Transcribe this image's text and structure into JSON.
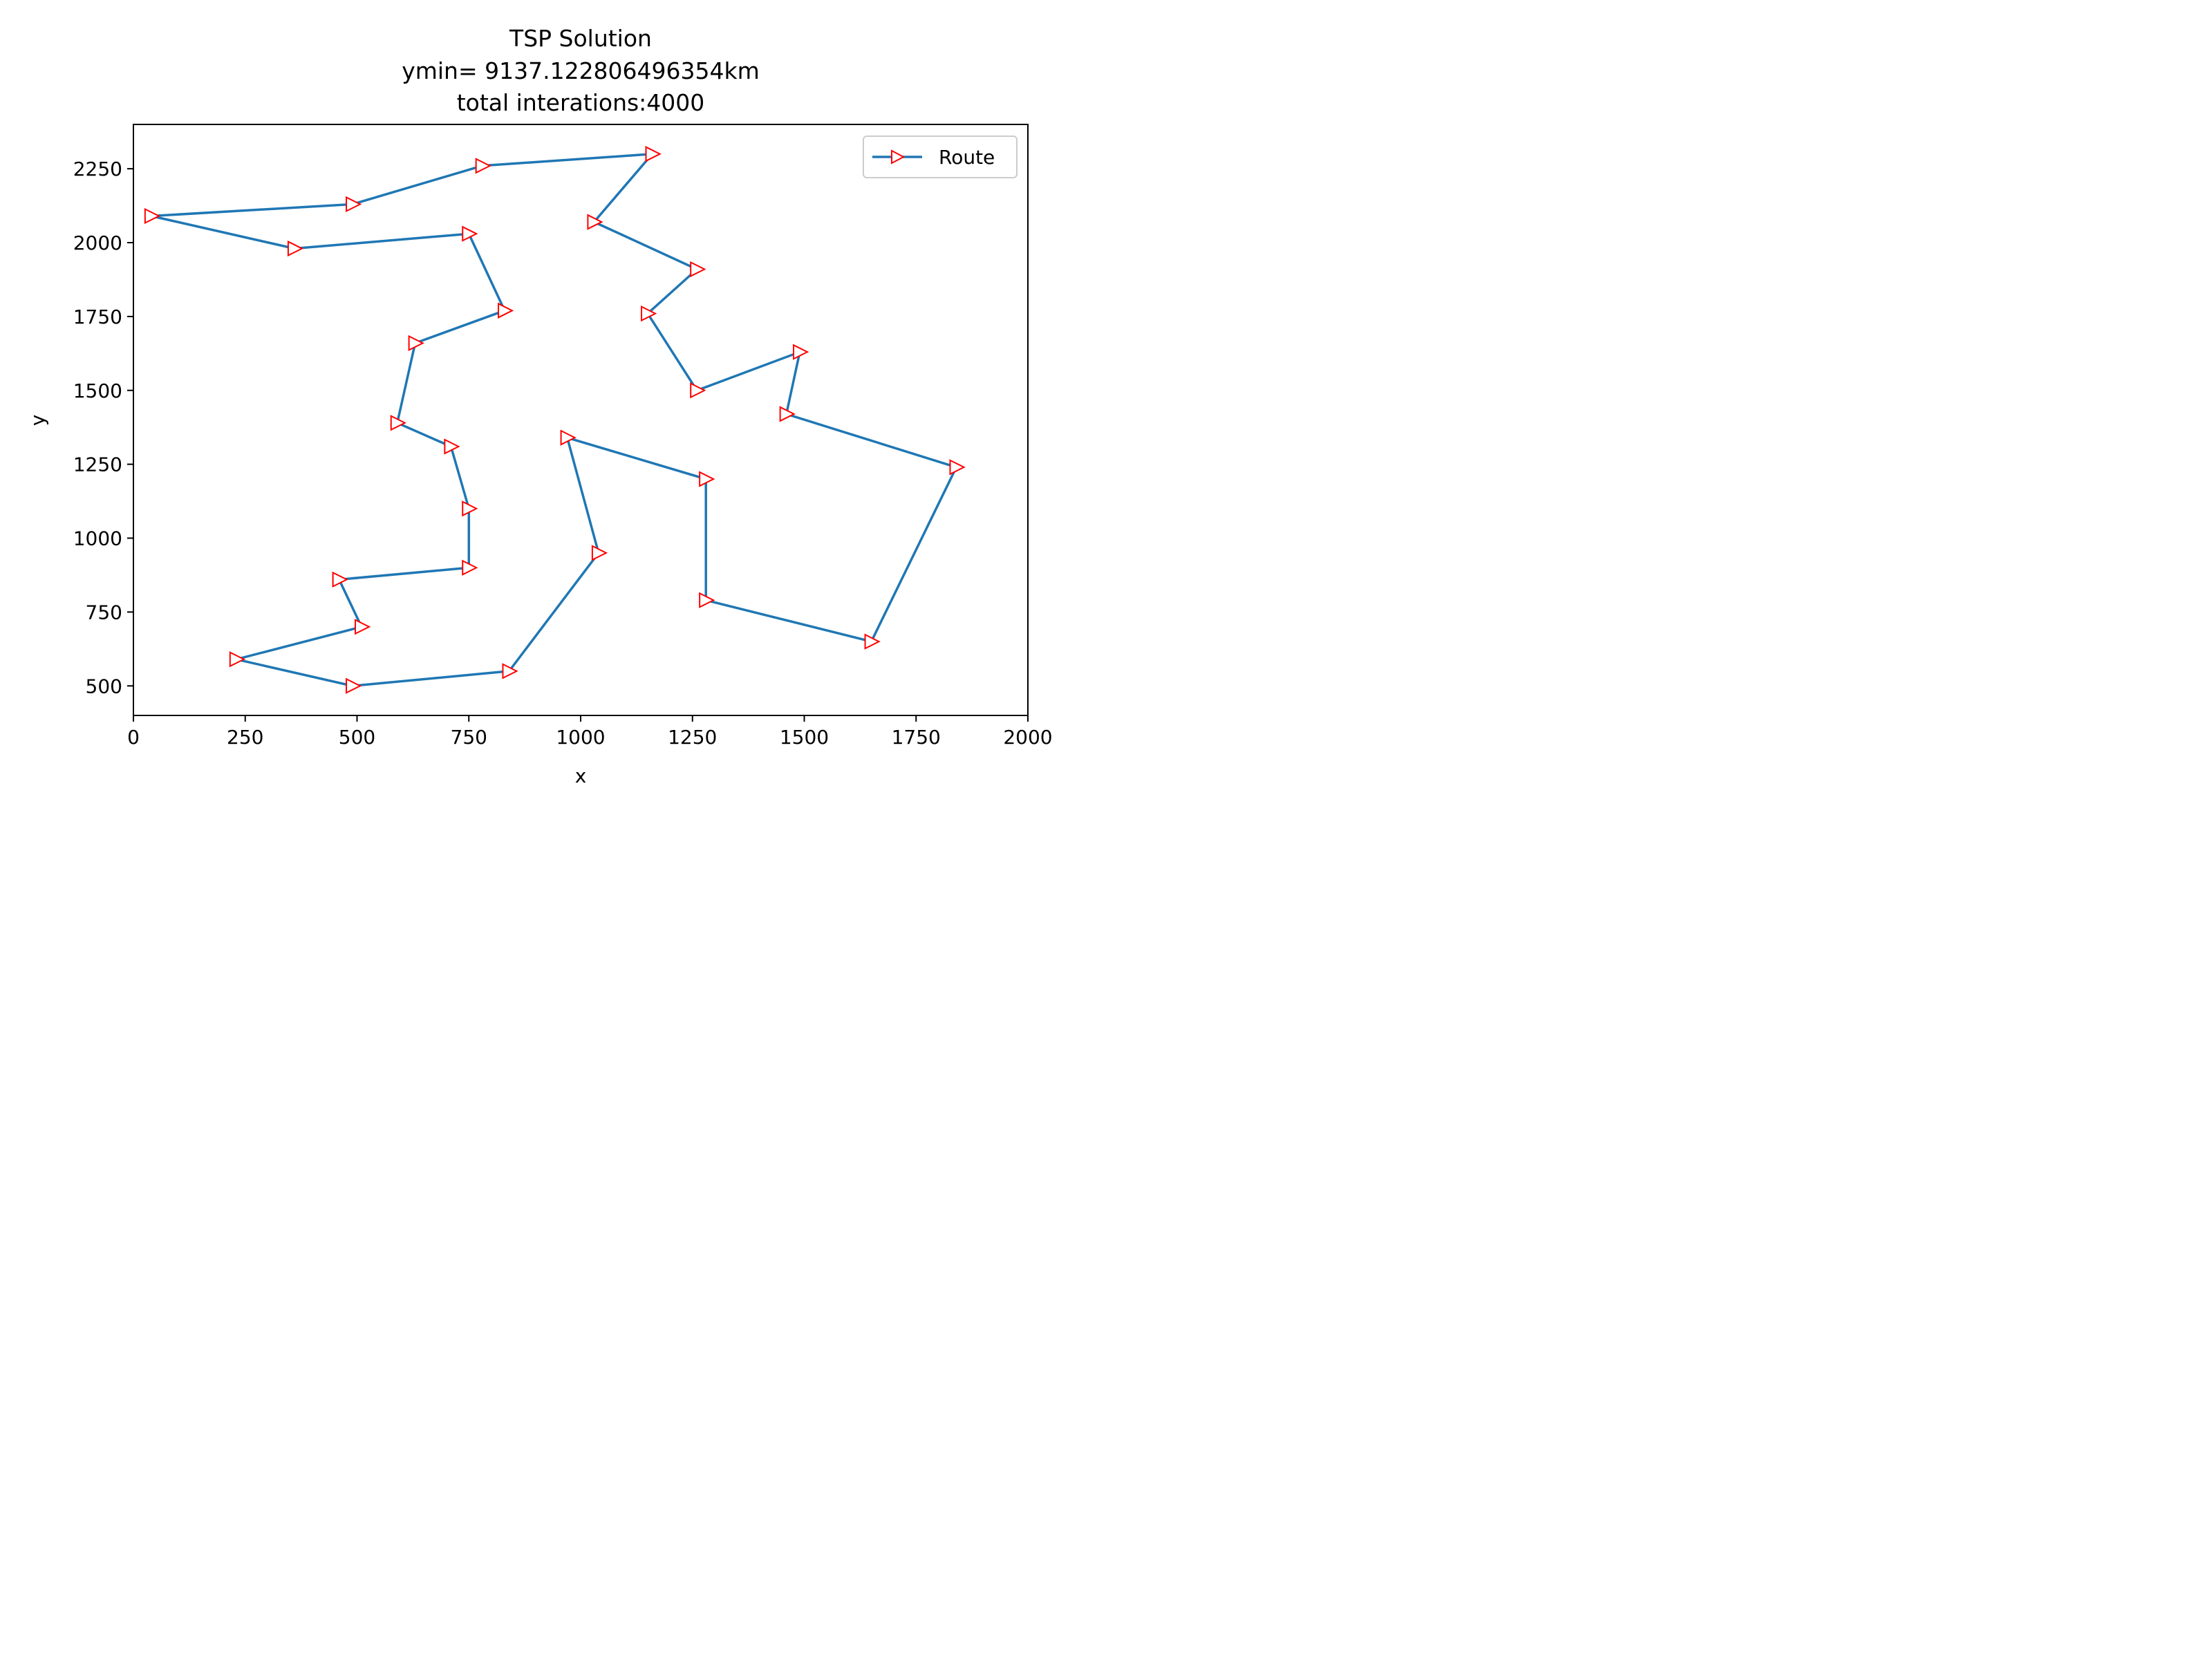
{
  "chart_data": {
    "type": "line",
    "title_lines": [
      "TSP Solution",
      "ymin= 9137.122806496354km",
      "total interations:4000"
    ],
    "xlabel": "x",
    "ylabel": "y",
    "xlim": [
      0,
      2000
    ],
    "ylim": [
      400,
      2400
    ],
    "xticks": [
      0,
      250,
      500,
      750,
      1000,
      1250,
      1500,
      1750,
      2000
    ],
    "yticks": [
      500,
      750,
      1000,
      1250,
      1500,
      1750,
      2000,
      2250
    ],
    "grid": false,
    "legend_position": "top-right",
    "series": [
      {
        "name": "Route",
        "color": "#1f77b4",
        "marker": "right-triangle",
        "marker_edge_color": "#ff0000",
        "x": [
          1160,
          1030,
          1260,
          1150,
          1260,
          1490,
          1460,
          1840,
          1650,
          1280,
          1280,
          970,
          1040,
          840,
          490,
          230,
          510,
          460,
          750,
          750,
          710,
          590,
          630,
          830,
          750,
          360,
          40,
          490,
          780,
          1160
        ],
        "y": [
          2300,
          2070,
          1910,
          1760,
          1500,
          1630,
          1420,
          1240,
          650,
          790,
          1200,
          1340,
          950,
          550,
          500,
          590,
          700,
          860,
          900,
          1100,
          1310,
          1390,
          1660,
          1770,
          2030,
          1980,
          2090,
          2130,
          2260,
          2300
        ]
      }
    ]
  }
}
